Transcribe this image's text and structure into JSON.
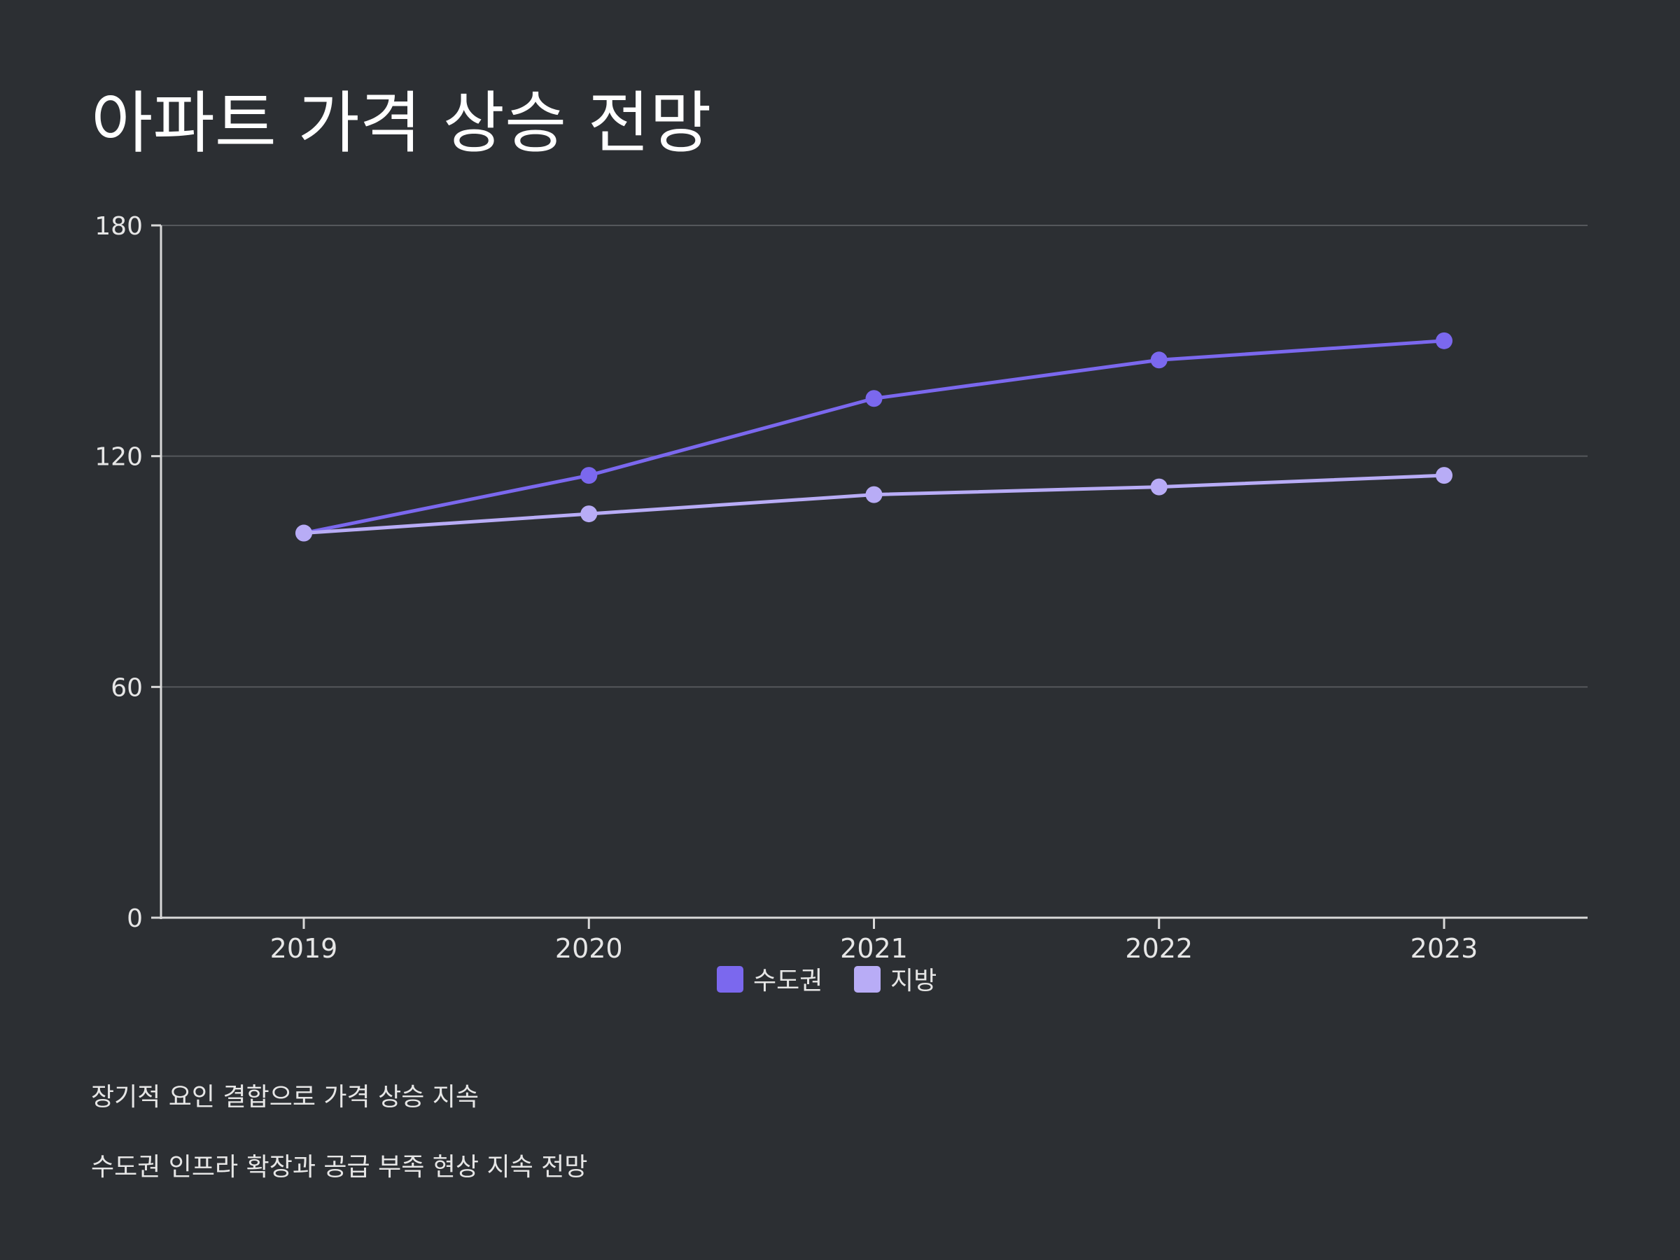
{
  "title": "아파트 가격 상승 전망",
  "notes": [
    "장기적 요인 결합으로 가격 상승 지속",
    "수도권 인프라 확장과 공급 부족 현상 지속 전망"
  ],
  "colors": {
    "background": "#2c2f33",
    "grid": "#55585c",
    "axis": "#d9d9d9",
    "capital": "#7b68ee",
    "region": "#b8acf6"
  },
  "chart_data": {
    "type": "line",
    "title": "아파트 가격 상승 전망",
    "xlabel": "",
    "ylabel": "",
    "categories": [
      "2019",
      "2020",
      "2021",
      "2022",
      "2023"
    ],
    "ylim": [
      0,
      180
    ],
    "yticks": [
      0,
      60,
      120,
      180
    ],
    "grid": true,
    "legend_position": "bottom-center",
    "series": [
      {
        "name": "수도권",
        "values": [
          100,
          115,
          135,
          145,
          150
        ],
        "color": "#7b68ee"
      },
      {
        "name": "지방",
        "values": [
          100,
          105,
          110,
          112,
          115
        ],
        "color": "#b8acf6"
      }
    ]
  }
}
